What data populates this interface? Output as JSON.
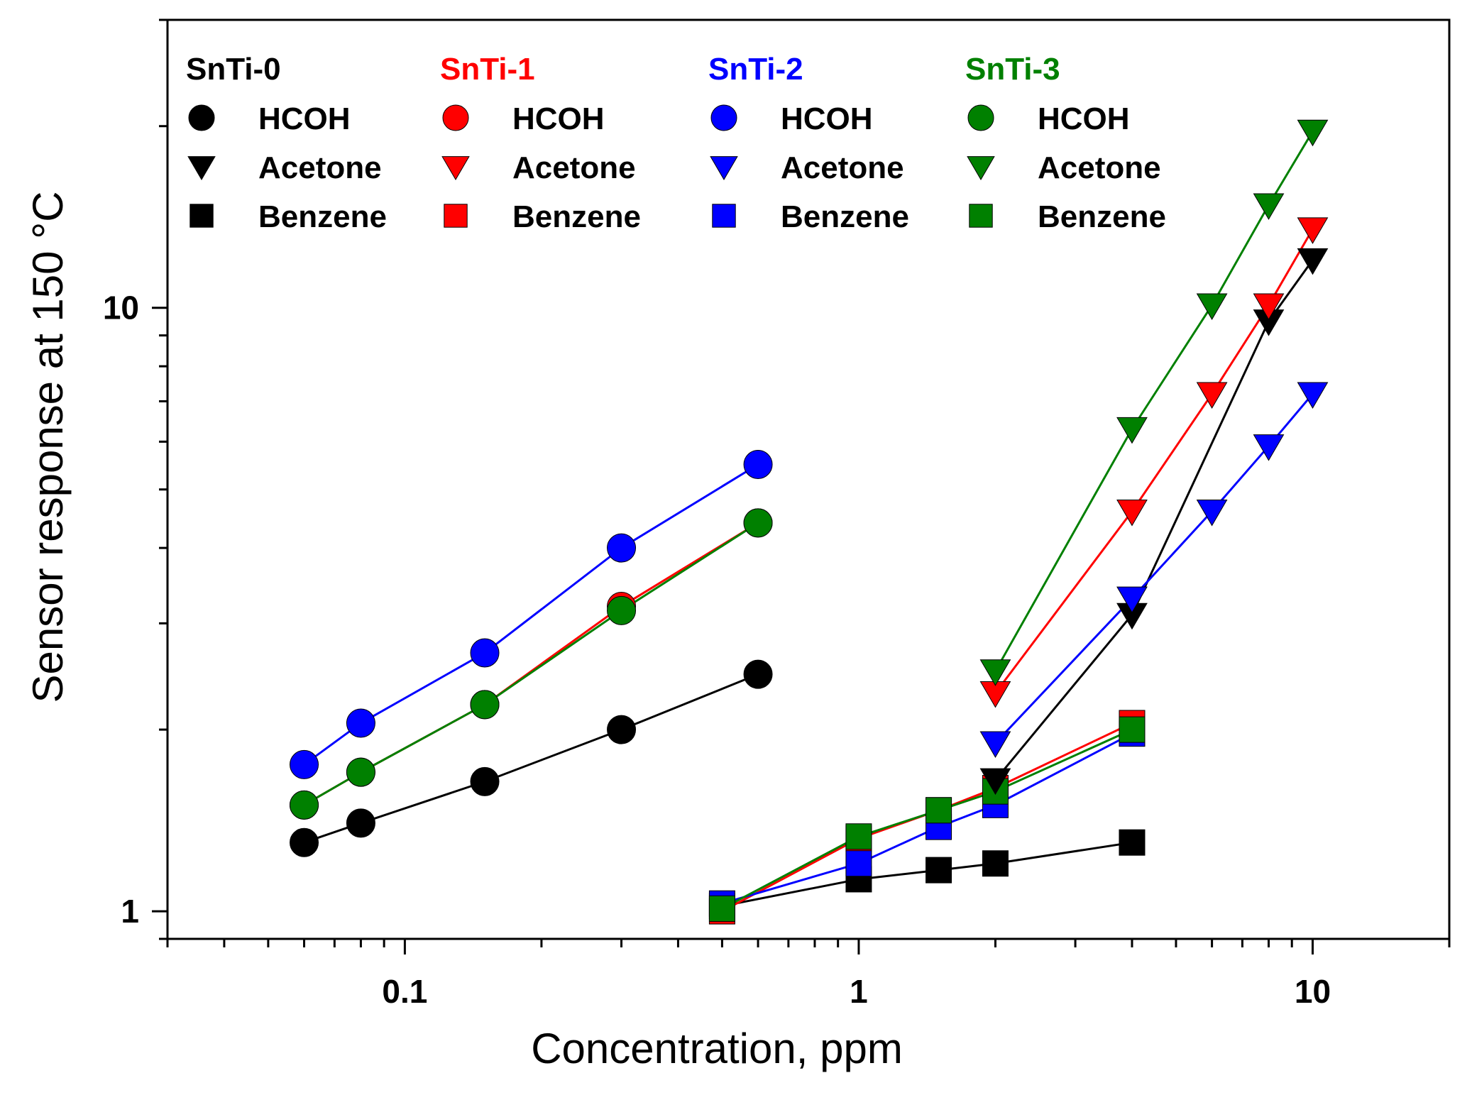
{
  "chart_data": {
    "type": "scatter",
    "xlabel": "Concentration, ppm",
    "ylabel": "Sensor response at 150 °C",
    "xscale": "log",
    "yscale": "log",
    "xlim": [
      0.03,
      20
    ],
    "ylim": [
      0.9,
      30
    ],
    "x_tick_labels": [
      {
        "value": 0.1,
        "label": "0.1"
      },
      {
        "value": 1,
        "label": "1"
      },
      {
        "value": 10,
        "label": "10"
      }
    ],
    "y_tick_labels": [
      {
        "value": 1,
        "label": "1"
      },
      {
        "value": 10,
        "label": "10"
      }
    ],
    "grid": false,
    "legend_position": "top-left",
    "legend": [
      {
        "sample": "SnTi-0",
        "color": "#000000",
        "entries": [
          {
            "marker": "circle",
            "label": "HCOH"
          },
          {
            "marker": "triangle-down",
            "label": "Acetone"
          },
          {
            "marker": "square",
            "label": "Benzene"
          }
        ]
      },
      {
        "sample": "SnTi-1",
        "color": "#ff0000",
        "entries": [
          {
            "marker": "circle",
            "label": "HCOH"
          },
          {
            "marker": "triangle-down",
            "label": "Acetone"
          },
          {
            "marker": "square",
            "label": "Benzene"
          }
        ]
      },
      {
        "sample": "SnTi-2",
        "color": "#0000ff",
        "entries": [
          {
            "marker": "circle",
            "label": "HCOH"
          },
          {
            "marker": "triangle-down",
            "label": "Acetone"
          },
          {
            "marker": "square",
            "label": "Benzene"
          }
        ]
      },
      {
        "sample": "SnTi-3",
        "color": "#008000",
        "entries": [
          {
            "marker": "circle",
            "label": "HCOH"
          },
          {
            "marker": "triangle-down",
            "label": "Acetone"
          },
          {
            "marker": "square",
            "label": "Benzene"
          }
        ]
      }
    ],
    "series": [
      {
        "sample": "SnTi-1",
        "gas": "HCOH",
        "marker": "circle",
        "color": "#ff0000",
        "x": [
          0.06,
          0.08,
          0.15,
          0.3,
          0.6
        ],
        "y": [
          1.5,
          1.7,
          2.2,
          3.2,
          4.4
        ]
      },
      {
        "sample": "SnTi-3",
        "gas": "HCOH",
        "marker": "circle",
        "color": "#008000",
        "x": [
          0.06,
          0.08,
          0.15,
          0.3,
          0.6
        ],
        "y": [
          1.5,
          1.7,
          2.2,
          3.15,
          4.4
        ]
      },
      {
        "sample": "SnTi-0",
        "gas": "HCOH",
        "marker": "circle",
        "color": "#000000",
        "x": [
          0.06,
          0.08,
          0.15,
          0.3,
          0.6
        ],
        "y": [
          1.3,
          1.4,
          1.64,
          2.0,
          2.47
        ]
      },
      {
        "sample": "SnTi-2",
        "gas": "HCOH",
        "marker": "circle",
        "color": "#0000ff",
        "x": [
          0.06,
          0.08,
          0.15,
          0.3,
          0.6
        ],
        "y": [
          1.75,
          2.05,
          2.68,
          4.0,
          5.5
        ]
      },
      {
        "sample": "SnTi-0",
        "gas": "Benzene",
        "marker": "square",
        "color": "#000000",
        "x": [
          0.5,
          1,
          1.5,
          2,
          4
        ],
        "y": [
          1.02,
          1.13,
          1.17,
          1.2,
          1.3
        ]
      },
      {
        "sample": "SnTi-1",
        "gas": "Benzene",
        "marker": "square",
        "color": "#ff0000",
        "x": [
          0.5,
          1,
          1.5,
          2,
          4
        ],
        "y": [
          1.0,
          1.32,
          1.47,
          1.6,
          2.05
        ]
      },
      {
        "sample": "SnTi-2",
        "gas": "Benzene",
        "marker": "square",
        "color": "#0000ff",
        "x": [
          0.5,
          1,
          1.5,
          2,
          4
        ],
        "y": [
          1.03,
          1.2,
          1.38,
          1.5,
          1.97
        ]
      },
      {
        "sample": "SnTi-3",
        "gas": "Benzene",
        "marker": "square",
        "color": "#008000",
        "x": [
          0.5,
          1,
          1.5,
          2,
          4
        ],
        "y": [
          1.01,
          1.33,
          1.47,
          1.58,
          2.0
        ]
      },
      {
        "sample": "SnTi-0",
        "gas": "Acetone",
        "marker": "triangle-down",
        "color": "#000000",
        "x": [
          2,
          4,
          8,
          10
        ],
        "y": [
          1.65,
          3.1,
          9.5,
          12.0
        ]
      },
      {
        "sample": "SnTi-2",
        "gas": "Acetone",
        "marker": "triangle-down",
        "color": "#0000ff",
        "x": [
          2,
          4,
          6,
          8,
          10
        ],
        "y": [
          1.9,
          3.3,
          4.6,
          5.9,
          7.2
        ]
      },
      {
        "sample": "SnTi-1",
        "gas": "Acetone",
        "marker": "triangle-down",
        "color": "#ff0000",
        "x": [
          2,
          4,
          6,
          8,
          10
        ],
        "y": [
          2.3,
          4.6,
          7.2,
          10.1,
          13.5
        ]
      },
      {
        "sample": "SnTi-3",
        "gas": "Acetone",
        "marker": "triangle-down",
        "color": "#008000",
        "x": [
          2,
          4,
          6,
          8,
          10
        ],
        "y": [
          2.5,
          6.3,
          10.1,
          14.8,
          19.6
        ]
      }
    ]
  }
}
